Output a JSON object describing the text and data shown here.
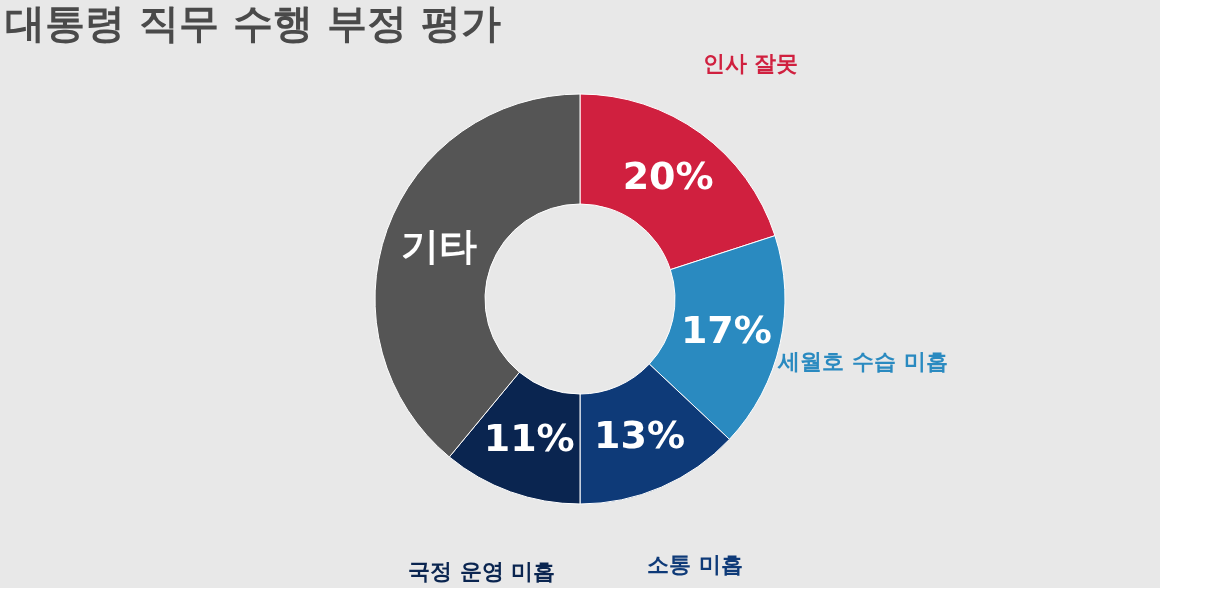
{
  "chart_data": {
    "type": "donut",
    "title": "대통령 직무 수행 부정 평가",
    "categories": [
      "인사 잘못",
      "세월호 수습 미흡",
      "소통 미흡",
      "국정 운영 미흡",
      "기타"
    ],
    "values": [
      20,
      17,
      13,
      11,
      39
    ],
    "colors": [
      "#d0203f",
      "#2a8ac0",
      "#0e3a78",
      "#0a2550",
      "#555555"
    ],
    "value_labels": [
      "20%",
      "17%",
      "13%",
      "11%",
      null
    ],
    "legend": false
  }
}
